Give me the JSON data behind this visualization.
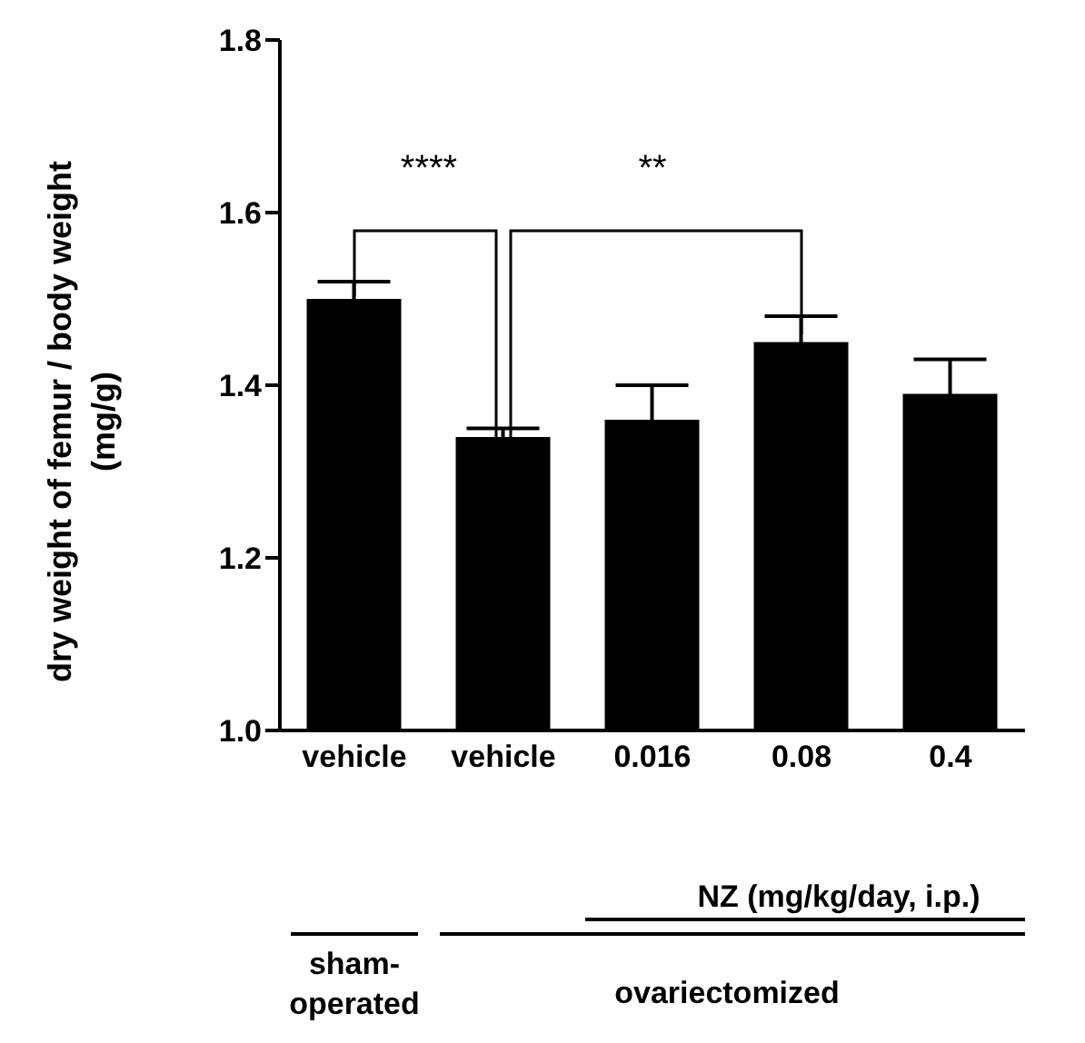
{
  "chart_data": {
    "type": "bar",
    "ylabel": "dry weight of femur / body weight (mg/g)",
    "categories": [
      "vehicle",
      "vehicle",
      "0.016",
      "0.08",
      "0.4"
    ],
    "values": [
      1.5,
      1.34,
      1.36,
      1.45,
      1.39
    ],
    "errors": [
      0.02,
      0.01,
      0.04,
      0.03,
      0.04
    ],
    "color": "#000000",
    "ylim": [
      1.0,
      1.8
    ],
    "yticks": [
      {
        "value": 1.0,
        "label": "1.0"
      },
      {
        "value": 1.2,
        "label": "1.2"
      },
      {
        "value": 1.4,
        "label": "1.4"
      },
      {
        "value": 1.6,
        "label": "1.6"
      },
      {
        "value": 1.8,
        "label": "1.8"
      }
    ],
    "grid": false,
    "legend": false,
    "annotations": [
      "****",
      "**",
      "NZ (mg/kg/day, i.p.)",
      "sham-operated",
      "ovariectomized"
    ]
  }
}
